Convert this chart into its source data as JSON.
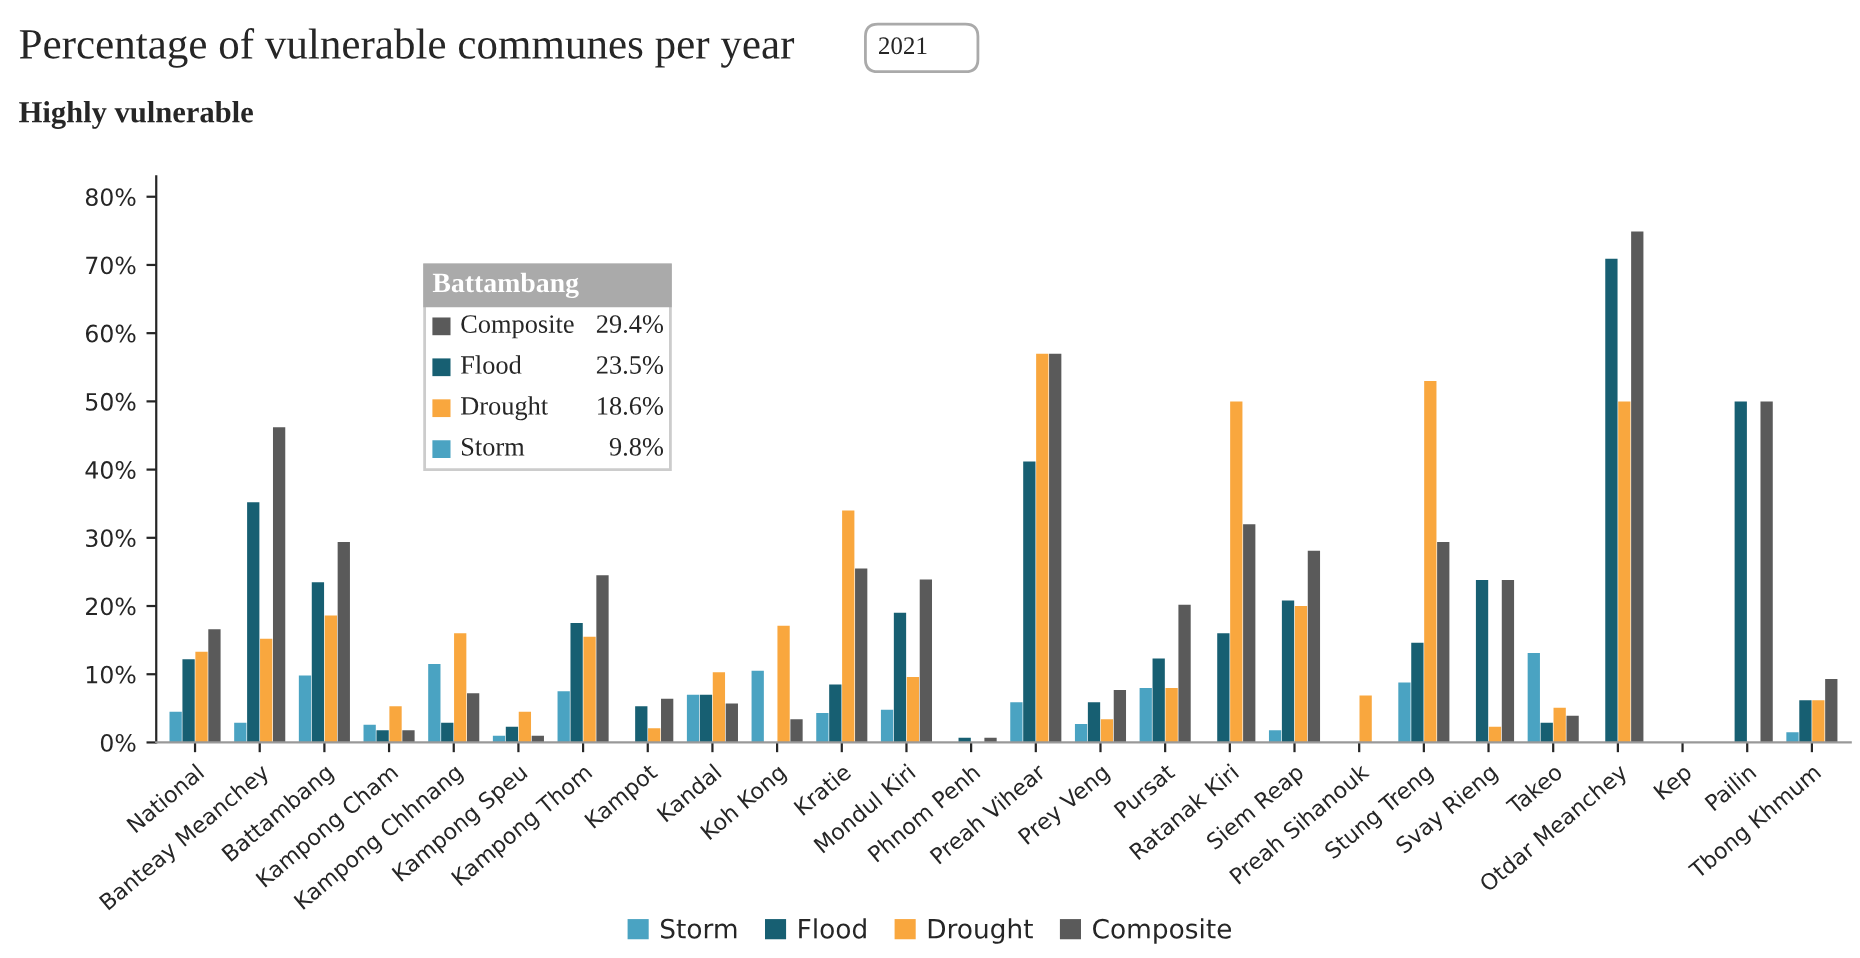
{
  "chart_data": {
    "type": "bar",
    "title": "Percentage of vulnerable communes per year",
    "subtitle": "Highly vulnerable",
    "categories": [
      "National",
      "Banteay Meanchey",
      "Battambang",
      "Kampong Cham",
      "Kampong Chhnang",
      "Kampong Speu",
      "Kampong Thom",
      "Kampot",
      "Kandal",
      "Koh Kong",
      "Kratie",
      "Mondul Kiri",
      "Phnom Penh",
      "Preah Vihear",
      "Prey Veng",
      "Pursat",
      "Ratanak Kiri",
      "Siem Reap",
      "Preah Sihanouk",
      "Stung Treng",
      "Svay Rieng",
      "Takeo",
      "Otdar Meanchey",
      "Kep",
      "Pailin",
      "Tbong Khmum"
    ],
    "series": [
      {
        "name": "Storm",
        "color": "#4aa3c2",
        "values": [
          4.5,
          2.9,
          9.8,
          2.6,
          11.5,
          1.0,
          7.5,
          null,
          7.0,
          10.5,
          4.3,
          4.8,
          null,
          5.9,
          2.7,
          8.0,
          null,
          1.8,
          null,
          8.8,
          null,
          13.1,
          null,
          null,
          null,
          1.5
        ]
      },
      {
        "name": "Flood",
        "color": "#175f72",
        "values": [
          12.2,
          35.2,
          23.5,
          1.8,
          2.9,
          2.3,
          17.5,
          5.3,
          7.0,
          null,
          8.5,
          19.0,
          0.7,
          41.2,
          5.9,
          12.3,
          16.0,
          20.8,
          null,
          14.6,
          23.8,
          2.9,
          70.9,
          null,
          50.0,
          6.2
        ]
      },
      {
        "name": "Drought",
        "color": "#f9a73e",
        "values": [
          13.3,
          15.2,
          18.6,
          5.3,
          16.0,
          4.5,
          15.5,
          2.1,
          10.3,
          17.1,
          34.0,
          9.6,
          null,
          57.0,
          3.4,
          8.0,
          50.0,
          20.0,
          6.9,
          53.0,
          2.3,
          5.1,
          50.0,
          null,
          null,
          6.2
        ]
      },
      {
        "name": "Composite",
        "color": "#5a5a5a",
        "values": [
          16.6,
          46.2,
          29.4,
          1.8,
          7.2,
          1.0,
          24.5,
          6.4,
          5.7,
          3.4,
          25.5,
          23.9,
          0.7,
          57.0,
          7.7,
          20.2,
          32.0,
          28.1,
          null,
          29.4,
          23.8,
          3.9,
          74.9,
          null,
          50.0,
          9.3
        ]
      }
    ],
    "ylim": [
      0,
      83
    ],
    "yticks": [
      {
        "value": 0,
        "label": "0%"
      },
      {
        "value": 10,
        "label": "10%"
      },
      {
        "value": 20,
        "label": "20%"
      },
      {
        "value": 30,
        "label": "30%"
      },
      {
        "value": 40,
        "label": "40%"
      },
      {
        "value": 50,
        "label": "50%"
      },
      {
        "value": 60,
        "label": "60%"
      },
      {
        "value": 70,
        "label": "70%"
      },
      {
        "value": 80,
        "label": "80%"
      }
    ],
    "annotations": [
      "2021",
      "Battambang",
      "Composite",
      "29.4%",
      "Flood",
      "23.5%",
      "Drought",
      "18.6%",
      "Storm",
      "9.8%"
    ],
    "legend": "bottom"
  }
}
